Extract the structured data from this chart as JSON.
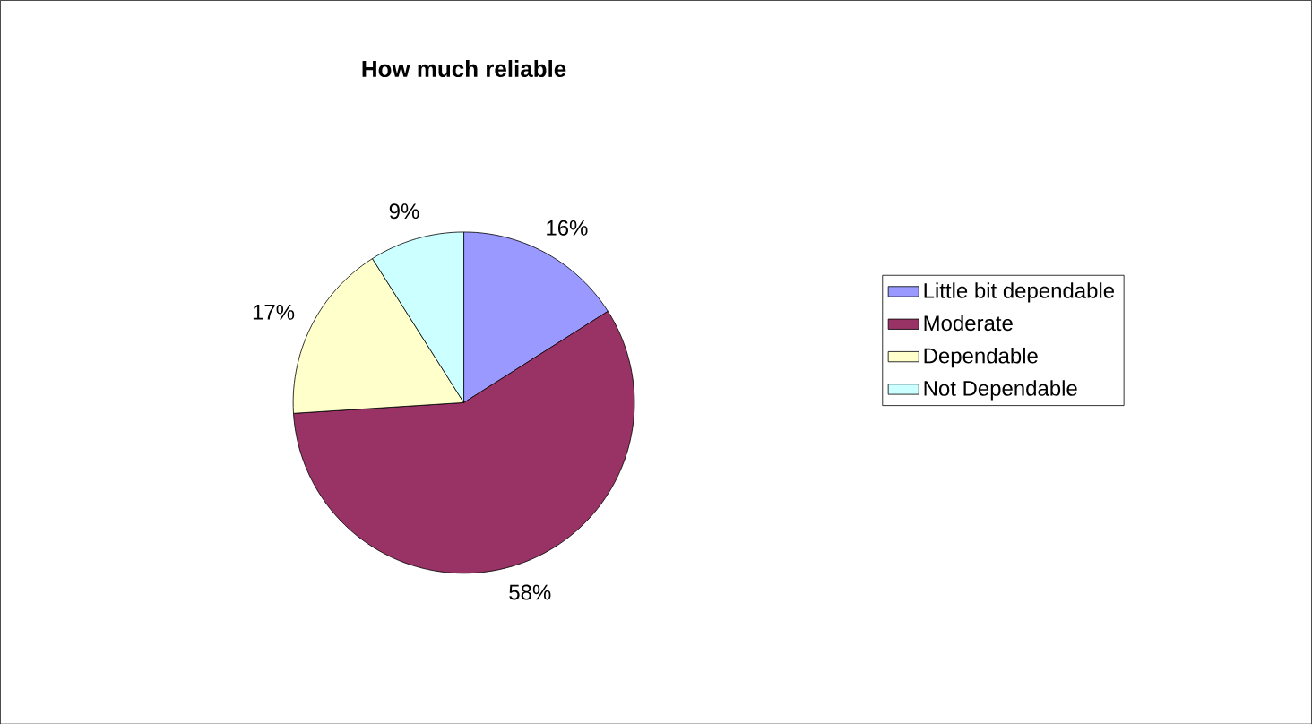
{
  "chart_data": {
    "type": "pie",
    "title": "How much reliable",
    "categories": [
      "Little bit dependable",
      "Moderate",
      "Dependable",
      "Not Dependable"
    ],
    "values": [
      16,
      58,
      17,
      9
    ],
    "value_labels": [
      "16%",
      "58%",
      "17%",
      "9%"
    ],
    "colors": [
      "#9999ff",
      "#993366",
      "#ffffcc",
      "#ccffff"
    ],
    "legend": "right"
  }
}
